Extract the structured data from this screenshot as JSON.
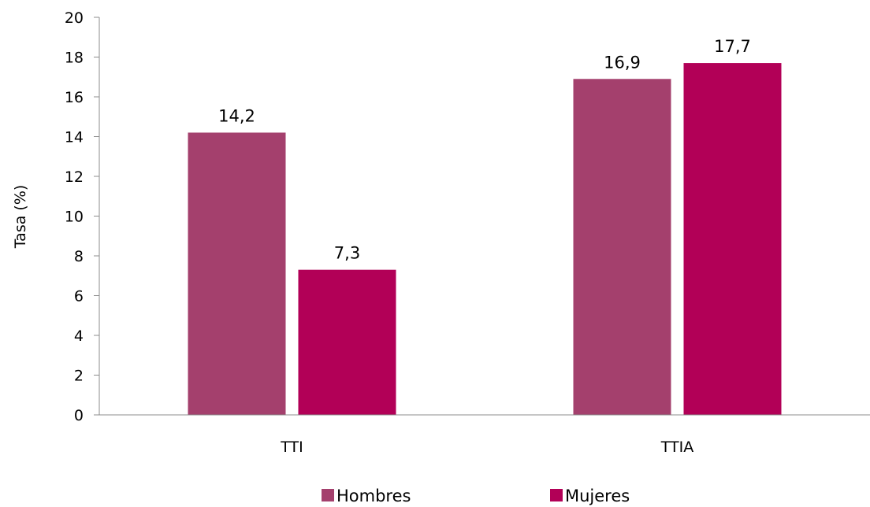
{
  "chart_data": {
    "type": "bar",
    "title": "",
    "xlabel": "",
    "ylabel": "Tasa (%)",
    "ylim": [
      0,
      20
    ],
    "yticks": [
      0,
      2,
      4,
      6,
      8,
      10,
      12,
      14,
      16,
      18,
      20
    ],
    "categories": [
      "TTI",
      "TTIA"
    ],
    "series": [
      {
        "name": "Hombres",
        "values": [
          14.2,
          16.9
        ],
        "labels": [
          "14,2",
          "16,9"
        ],
        "color": "#A4406D"
      },
      {
        "name": "Mujeres",
        "values": [
          7.3,
          17.7
        ],
        "labels": [
          "7,3",
          "17,7"
        ],
        "color": "#B20057"
      }
    ],
    "legend": "bottom",
    "grid": false
  }
}
